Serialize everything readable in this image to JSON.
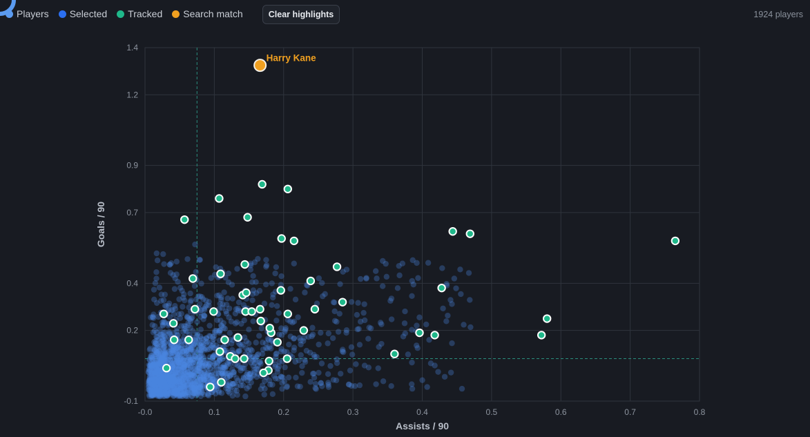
{
  "legend": {
    "items": [
      {
        "label": "Players",
        "color": "#5b9bf0"
      },
      {
        "label": "Selected",
        "color": "#2b6ff0"
      },
      {
        "label": "Tracked",
        "color": "#1fb88a"
      },
      {
        "label": "Search match",
        "color": "#f0a020"
      }
    ]
  },
  "toolbar": {
    "clear_label": "Clear highlights"
  },
  "status": {
    "player_count": "1924 players"
  },
  "chart_data": {
    "type": "scatter",
    "xlabel": "Assists / 90",
    "ylabel": "Goals / 90",
    "xlim": [
      0.0,
      0.8
    ],
    "ylim": [
      -0.1,
      1.4
    ],
    "xticks": [
      0.0,
      0.1,
      0.2,
      0.3,
      0.4,
      0.5,
      0.6,
      0.7,
      0.8
    ],
    "xtick_labels": [
      "-0.0",
      "0.1",
      "0.2",
      "0.3",
      "0.4",
      "0.5",
      "0.6",
      "0.7",
      "0.8"
    ],
    "yticks": [
      -0.1,
      0.2,
      0.4,
      0.7,
      0.9,
      1.2,
      1.4
    ],
    "ytick_labels": [
      "-0.1",
      "0.2",
      "0.4",
      "0.7",
      "0.9",
      "1.2",
      "1.4"
    ],
    "grid": true,
    "reference_lines": {
      "x": 0.075,
      "y": 0.08
    },
    "colors": {
      "players": "#4a86e0",
      "tracked": "#1fb88a",
      "search": "#f0a020",
      "selected": "#5b9bf0",
      "grid": "#2f343d",
      "ref": "#2a8f7e"
    },
    "annotations": [
      {
        "text": "Harry Kane",
        "x": 0.166,
        "y": 1.325
      }
    ],
    "search_match": [
      {
        "name": "Harry Kane",
        "x": 0.166,
        "y": 1.325
      }
    ],
    "selected": [
      {
        "x": 0.025,
        "y": -0.03
      }
    ],
    "tracked": [
      [
        0.057,
        0.67
      ],
      [
        0.107,
        0.76
      ],
      [
        0.148,
        0.68
      ],
      [
        0.169,
        0.82
      ],
      [
        0.206,
        0.8
      ],
      [
        0.197,
        0.59
      ],
      [
        0.215,
        0.58
      ],
      [
        0.444,
        0.62
      ],
      [
        0.469,
        0.61
      ],
      [
        0.572,
        0.18
      ],
      [
        0.58,
        0.25
      ],
      [
        0.765,
        0.58
      ],
      [
        0.069,
        0.42
      ],
      [
        0.109,
        0.44
      ],
      [
        0.144,
        0.48
      ],
      [
        0.277,
        0.47
      ],
      [
        0.239,
        0.41
      ],
      [
        0.196,
        0.37
      ],
      [
        0.141,
        0.35
      ],
      [
        0.146,
        0.36
      ],
      [
        0.166,
        0.29
      ],
      [
        0.072,
        0.29
      ],
      [
        0.099,
        0.28
      ],
      [
        0.027,
        0.27
      ],
      [
        0.041,
        0.23
      ],
      [
        0.145,
        0.28
      ],
      [
        0.154,
        0.28
      ],
      [
        0.167,
        0.24
      ],
      [
        0.206,
        0.27
      ],
      [
        0.245,
        0.29
      ],
      [
        0.285,
        0.32
      ],
      [
        0.428,
        0.38
      ],
      [
        0.182,
        0.19
      ],
      [
        0.18,
        0.21
      ],
      [
        0.229,
        0.2
      ],
      [
        0.396,
        0.19
      ],
      [
        0.418,
        0.18
      ],
      [
        0.063,
        0.16
      ],
      [
        0.042,
        0.16
      ],
      [
        0.115,
        0.16
      ],
      [
        0.134,
        0.17
      ],
      [
        0.191,
        0.15
      ],
      [
        0.108,
        0.11
      ],
      [
        0.123,
        0.09
      ],
      [
        0.13,
        0.08
      ],
      [
        0.143,
        0.08
      ],
      [
        0.179,
        0.07
      ],
      [
        0.205,
        0.08
      ],
      [
        0.36,
        0.1
      ],
      [
        0.178,
        0.03
      ],
      [
        0.171,
        0.02
      ],
      [
        0.11,
        -0.02
      ],
      [
        0.094,
        -0.04
      ],
      [
        0.031,
        0.04
      ]
    ]
  }
}
